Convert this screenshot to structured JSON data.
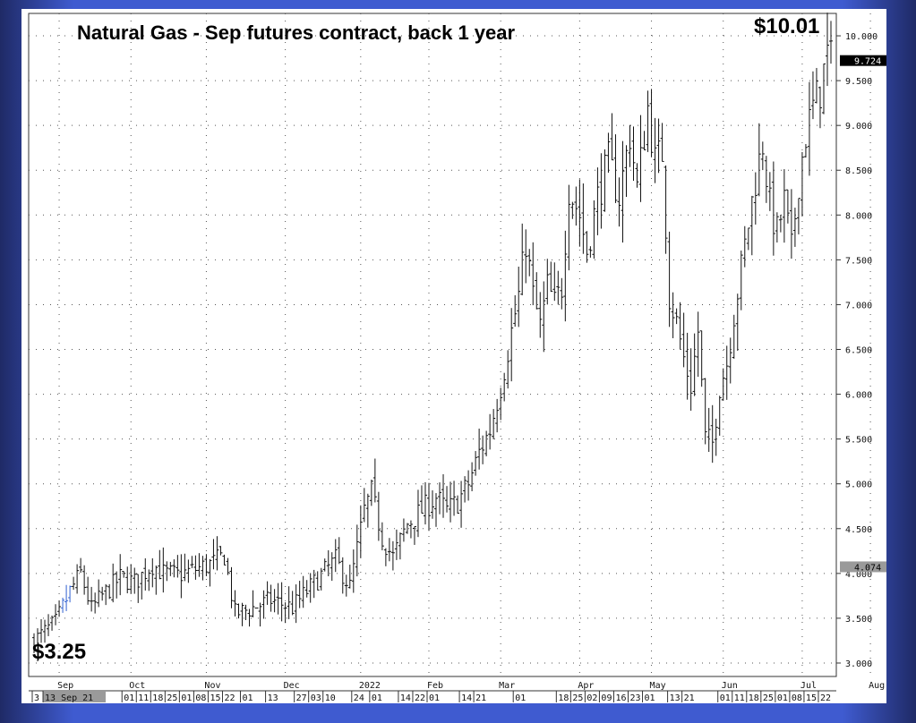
{
  "chart_data": {
    "type": "ohlc",
    "title": "Natural Gas - Sep futures contract, back 1 year",
    "annotations": {
      "high_label": "$10.01",
      "low_label": "$3.25"
    },
    "y_axis": {
      "ylim": [
        2.85,
        10.25
      ],
      "ticks": [
        "3.000",
        "3.500",
        "4.000",
        "4.500",
        "5.000",
        "5.500",
        "6.000",
        "6.500",
        "7.000",
        "7.500",
        "8.000",
        "8.500",
        "9.000",
        "9.500",
        "10.000"
      ],
      "markers": [
        {
          "label": "9.724",
          "value": 9.724,
          "color": "#000000",
          "text_color": "#ffffff"
        },
        {
          "label": "4.074",
          "value": 4.074,
          "color": "#9a9a9a",
          "text_color": "#000000"
        }
      ]
    },
    "months": [
      {
        "label": "Sep",
        "idx": 7
      },
      {
        "label": "Oct",
        "idx": 27
      },
      {
        "label": "Nov",
        "idx": 48
      },
      {
        "label": "Dec",
        "idx": 70
      },
      {
        "label": "2022",
        "idx": 91
      },
      {
        "label": "Feb",
        "idx": 110
      },
      {
        "label": "Mar",
        "idx": 130
      },
      {
        "label": "Apr",
        "idx": 152
      },
      {
        "label": "May",
        "idx": 172
      },
      {
        "label": "Jun",
        "idx": 192
      },
      {
        "label": "Jul",
        "idx": 214
      },
      {
        "label": "Aug",
        "idx": 233
      }
    ],
    "date_labels": [
      {
        "label": "3",
        "idx": 0
      },
      {
        "label": "13 Sep 21",
        "idx": 3,
        "highlight": true
      },
      {
        "label": "01",
        "idx": 25
      },
      {
        "label": "11",
        "idx": 29
      },
      {
        "label": "18",
        "idx": 33
      },
      {
        "label": "25",
        "idx": 37
      },
      {
        "label": "01",
        "idx": 41
      },
      {
        "label": "08",
        "idx": 45
      },
      {
        "label": "15",
        "idx": 49
      },
      {
        "label": "22",
        "idx": 53
      },
      {
        "label": "01",
        "idx": 58
      },
      {
        "label": "13",
        "idx": 65
      },
      {
        "label": "27",
        "idx": 73
      },
      {
        "label": "03",
        "idx": 77
      },
      {
        "label": "10",
        "idx": 81
      },
      {
        "label": "24",
        "idx": 89
      },
      {
        "label": "01",
        "idx": 94
      },
      {
        "label": "14",
        "idx": 102
      },
      {
        "label": "22",
        "idx": 106
      },
      {
        "label": "01",
        "idx": 110
      },
      {
        "label": "14",
        "idx": 119
      },
      {
        "label": "21",
        "idx": 123
      },
      {
        "label": "01",
        "idx": 134
      },
      {
        "label": "18",
        "idx": 146
      },
      {
        "label": "25",
        "idx": 150
      },
      {
        "label": "02",
        "idx": 154
      },
      {
        "label": "09",
        "idx": 158
      },
      {
        "label": "16",
        "idx": 162
      },
      {
        "label": "23",
        "idx": 166
      },
      {
        "label": "01",
        "idx": 170
      },
      {
        "label": "13",
        "idx": 177
      },
      {
        "label": "21",
        "idx": 181
      },
      {
        "label": "01",
        "idx": 191
      },
      {
        "label": "11",
        "idx": 195
      },
      {
        "label": "18",
        "idx": 199
      },
      {
        "label": "25",
        "idx": 203
      },
      {
        "label": "01",
        "idx": 207
      },
      {
        "label": "08",
        "idx": 211
      },
      {
        "label": "15",
        "idx": 215
      },
      {
        "label": "22",
        "idx": 219
      }
    ],
    "series_keypoints": [
      [
        0,
        3.25
      ],
      [
        6,
        3.45
      ],
      [
        10,
        3.8
      ],
      [
        13,
        4.0
      ],
      [
        16,
        3.6
      ],
      [
        19,
        3.75
      ],
      [
        24,
        3.95
      ],
      [
        28,
        3.9
      ],
      [
        33,
        4.1
      ],
      [
        36,
        4.0
      ],
      [
        40,
        3.98
      ],
      [
        46,
        4.06
      ],
      [
        50,
        4.12
      ],
      [
        53,
        4.2
      ],
      [
        56,
        3.55
      ],
      [
        60,
        3.6
      ],
      [
        66,
        3.7
      ],
      [
        72,
        3.62
      ],
      [
        76,
        3.8
      ],
      [
        80,
        3.98
      ],
      [
        84,
        4.15
      ],
      [
        88,
        3.85
      ],
      [
        92,
        4.7
      ],
      [
        94,
        4.9
      ],
      [
        97,
        4.4
      ],
      [
        100,
        4.18
      ],
      [
        104,
        4.55
      ],
      [
        108,
        4.7
      ],
      [
        112,
        4.85
      ],
      [
        115,
        4.7
      ],
      [
        118,
        4.8
      ],
      [
        121,
        5.0
      ],
      [
        124,
        5.35
      ],
      [
        127,
        5.6
      ],
      [
        130,
        6.1
      ],
      [
        133,
        6.7
      ],
      [
        135,
        7.1
      ],
      [
        137,
        7.7
      ],
      [
        139,
        7.1
      ],
      [
        141,
        6.75
      ],
      [
        143,
        7.2
      ],
      [
        145,
        7.0
      ],
      [
        147,
        7.2
      ],
      [
        149,
        8.3
      ],
      [
        152,
        8.0
      ],
      [
        154,
        7.6
      ],
      [
        157,
        8.2
      ],
      [
        160,
        8.6
      ],
      [
        163,
        8.2
      ],
      [
        166,
        8.9
      ],
      [
        168,
        8.3
      ],
      [
        171,
        9.2
      ],
      [
        173,
        8.6
      ],
      [
        175,
        8.7
      ],
      [
        177,
        7.1
      ],
      [
        179,
        6.8
      ],
      [
        181,
        6.4
      ],
      [
        183,
        6.1
      ],
      [
        185,
        6.7
      ],
      [
        187,
        5.5
      ],
      [
        189,
        5.45
      ],
      [
        191,
        6.1
      ],
      [
        193,
        6.35
      ],
      [
        195,
        6.9
      ],
      [
        197,
        7.4
      ],
      [
        199,
        7.9
      ],
      [
        201,
        8.4
      ],
      [
        203,
        8.8
      ],
      [
        205,
        8.1
      ],
      [
        207,
        7.8
      ],
      [
        209,
        8.15
      ],
      [
        211,
        7.6
      ],
      [
        213,
        8.4
      ],
      [
        215,
        8.9
      ],
      [
        217,
        9.2
      ],
      [
        219,
        9.4
      ],
      [
        221,
        9.8
      ],
      [
        222,
        9.72
      ]
    ],
    "bar_count": 223
  },
  "colors": {
    "bar": "#111111",
    "bar_start_accent": "#3060d0",
    "grid": "#555555",
    "panel": "#ffffff",
    "frame": "#3f5bd0"
  }
}
